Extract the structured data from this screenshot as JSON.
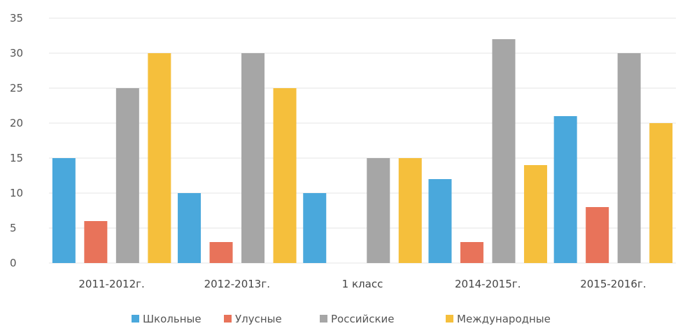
{
  "chart_data": {
    "type": "bar",
    "title": "",
    "xlabel": "",
    "ylabel": "",
    "ylim": [
      0,
      35
    ],
    "yticks": [
      0,
      5,
      10,
      15,
      20,
      25,
      30,
      35
    ],
    "grid": true,
    "legend_position": "bottom",
    "categories": [
      "2011-2012г.",
      "2012-2013г.",
      "1 класс",
      "2014-2015г.",
      "2015-2016г."
    ],
    "series": [
      {
        "name": "Школьные",
        "color": "#4aa8dc",
        "values": [
          15,
          10,
          10,
          12,
          21
        ]
      },
      {
        "name": "Улусные",
        "color": "#e8735a",
        "values": [
          6,
          3,
          0,
          3,
          8
        ]
      },
      {
        "name": "Российские",
        "color": "#a6a6a6",
        "values": [
          25,
          30,
          15,
          32,
          30
        ]
      },
      {
        "name": "Международные",
        "color": "#f5bf3c",
        "values": [
          30,
          25,
          15,
          14,
          20
        ]
      }
    ]
  }
}
